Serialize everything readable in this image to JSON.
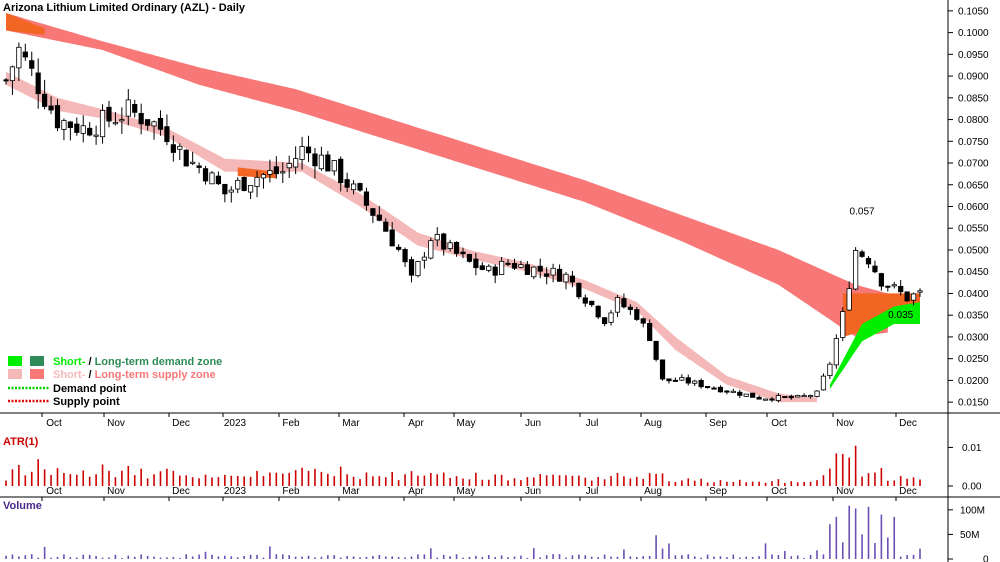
{
  "chart_data": [
    {
      "type": "candlestick",
      "panel": "price",
      "title": "Arizona Lithium Limited Ordinary (AZL) - Daily",
      "ylim": [
        0.0125,
        0.1075
      ],
      "y_ticks": [
        "0.1050",
        "0.1000",
        "0.0950",
        "0.0900",
        "0.0850",
        "0.0800",
        "0.0750",
        "0.0700",
        "0.0650",
        "0.0600",
        "0.0550",
        "0.0500",
        "0.0450",
        "0.0400",
        "0.0350",
        "0.0300",
        "0.0250",
        "0.0200",
        "0.0150"
      ],
      "x_ticks": [
        "Oct",
        "Nov",
        "Dec",
        "2023",
        "Feb",
        "Mar",
        "Apr",
        "May",
        "Jun",
        "Jul",
        "Aug",
        "Sep",
        "Oct",
        "Nov",
        "Dec"
      ],
      "annotations": [
        {
          "text": "0.057",
          "value": 0.057
        },
        {
          "text": "0.035",
          "value": 0.035
        }
      ],
      "close_path": [
        [
          0,
          0.089
        ],
        [
          2,
          0.096
        ],
        [
          5,
          0.088
        ],
        [
          8,
          0.08
        ],
        [
          12,
          0.078
        ],
        [
          16,
          0.08
        ],
        [
          19,
          0.082
        ],
        [
          22,
          0.08
        ],
        [
          25,
          0.077
        ],
        [
          28,
          0.071
        ],
        [
          31,
          0.068
        ],
        [
          34,
          0.063
        ],
        [
          36,
          0.065
        ],
        [
          39,
          0.067
        ],
        [
          43,
          0.068
        ],
        [
          46,
          0.073
        ],
        [
          49,
          0.071
        ],
        [
          52,
          0.067
        ],
        [
          55,
          0.062
        ],
        [
          58,
          0.057
        ],
        [
          61,
          0.05
        ],
        [
          63,
          0.043
        ],
        [
          66,
          0.053
        ],
        [
          69,
          0.05
        ],
        [
          72,
          0.047
        ],
        [
          75,
          0.045
        ],
        [
          78,
          0.047
        ],
        [
          81,
          0.046
        ],
        [
          84,
          0.045
        ],
        [
          87,
          0.044
        ],
        [
          90,
          0.039
        ],
        [
          93,
          0.034
        ],
        [
          95,
          0.038
        ],
        [
          98,
          0.035
        ],
        [
          100,
          0.03
        ],
        [
          102,
          0.02
        ],
        [
          105,
          0.02
        ],
        [
          108,
          0.019
        ],
        [
          111,
          0.018
        ],
        [
          114,
          0.017
        ],
        [
          117,
          0.016
        ],
        [
          120,
          0.016
        ],
        [
          123,
          0.016
        ],
        [
          126,
          0.017
        ],
        [
          128,
          0.024
        ],
        [
          130,
          0.035
        ],
        [
          132,
          0.05
        ],
        [
          134,
          0.048
        ],
        [
          136,
          0.043
        ],
        [
          138,
          0.041
        ],
        [
          140,
          0.039
        ],
        [
          142,
          0.04
        ]
      ],
      "long_term_supply_zone": {
        "color": "#f87878",
        "upper": [
          [
            0,
            0.1045
          ],
          [
            15,
            0.098
          ],
          [
            30,
            0.092
          ],
          [
            45,
            0.087
          ],
          [
            60,
            0.08
          ],
          [
            75,
            0.073
          ],
          [
            90,
            0.066
          ],
          [
            105,
            0.058
          ],
          [
            120,
            0.05
          ],
          [
            132,
            0.042
          ],
          [
            137,
            0.04
          ]
        ],
        "lower": [
          [
            0,
            0.1005
          ],
          [
            15,
            0.096
          ],
          [
            30,
            0.088
          ],
          [
            45,
            0.082
          ],
          [
            60,
            0.075
          ],
          [
            75,
            0.068
          ],
          [
            90,
            0.061
          ],
          [
            105,
            0.052
          ],
          [
            120,
            0.042
          ],
          [
            132,
            0.03
          ],
          [
            137,
            0.031
          ]
        ]
      },
      "short_term_supply_zone": {
        "color": "#f5b8b8",
        "upper": [
          [
            0,
            0.091
          ],
          [
            8,
            0.085
          ],
          [
            16,
            0.082
          ],
          [
            25,
            0.078
          ],
          [
            34,
            0.071
          ],
          [
            46,
            0.07
          ],
          [
            55,
            0.063
          ],
          [
            64,
            0.054
          ],
          [
            72,
            0.05
          ],
          [
            81,
            0.047
          ],
          [
            90,
            0.043
          ],
          [
            98,
            0.038
          ],
          [
            104,
            0.03
          ],
          [
            112,
            0.021
          ],
          [
            120,
            0.017
          ],
          [
            126,
            0.016
          ]
        ],
        "lower": [
          [
            0,
            0.088
          ],
          [
            8,
            0.082
          ],
          [
            16,
            0.08
          ],
          [
            25,
            0.076
          ],
          [
            34,
            0.068
          ],
          [
            46,
            0.068
          ],
          [
            55,
            0.06
          ],
          [
            64,
            0.051
          ],
          [
            72,
            0.048
          ],
          [
            81,
            0.045
          ],
          [
            90,
            0.041
          ],
          [
            98,
            0.036
          ],
          [
            104,
            0.027
          ],
          [
            112,
            0.019
          ],
          [
            120,
            0.015
          ],
          [
            126,
            0.015
          ]
        ]
      },
      "orange_zones": [
        {
          "upper": [
            [
              0,
              0.1045
            ],
            [
              6,
              0.101
            ]
          ],
          "lower": [
            [
              0,
              0.1005
            ],
            [
              6,
              0.0995
            ]
          ]
        },
        {
          "upper": [
            [
              36,
              0.069
            ],
            [
              42,
              0.068
            ]
          ],
          "lower": [
            [
              36,
              0.067
            ],
            [
              42,
              0.0665
            ]
          ]
        },
        {
          "upper": [
            [
              130,
              0.04
            ],
            [
              137,
              0.04
            ],
            [
              142,
              0.04
            ]
          ],
          "lower": [
            [
              130,
              0.03
            ],
            [
              137,
              0.033
            ],
            [
              142,
              0.033
            ]
          ]
        }
      ],
      "short_term_demand_zone": {
        "color": "#00ee00",
        "upper": [
          [
            128,
            0.019
          ],
          [
            133,
            0.033
          ],
          [
            138,
            0.037
          ],
          [
            142,
            0.038
          ]
        ],
        "lower": [
          [
            128,
            0.018
          ],
          [
            133,
            0.029
          ],
          [
            138,
            0.033
          ],
          [
            142,
            0.033
          ]
        ]
      },
      "legend": [
        {
          "label_short": "Short-",
          "label_long": "Long-term demand zone",
          "color_short": "#00ee00",
          "color_long": "#2e8b57"
        },
        {
          "label_short": "Short-",
          "label_long": "Long-term supply zone",
          "color_short": "#f5b8b8",
          "color_long": "#f87878"
        },
        {
          "label": "Demand point",
          "color": "#00cc00"
        },
        {
          "label": "Supply point",
          "color": "#dd0000"
        }
      ]
    },
    {
      "type": "bar",
      "panel": "atr",
      "title": "ATR(1)",
      "ylim": [
        0,
        0.014
      ],
      "y_ticks": [
        "0.01",
        "0.00"
      ],
      "x_ticks": [
        "Oct",
        "Nov",
        "Dec",
        "2023",
        "Feb",
        "Mar",
        "Apr",
        "May",
        "Jun",
        "Jul",
        "Aug",
        "Sep",
        "Oct",
        "Nov",
        "Dec"
      ],
      "color": "#cc0000"
    },
    {
      "type": "bar",
      "panel": "volume",
      "title": "Volume",
      "ylim": [
        0,
        120
      ],
      "y_ticks": [
        "100M",
        "50M",
        "0"
      ],
      "color": "#6a4fb3"
    }
  ]
}
